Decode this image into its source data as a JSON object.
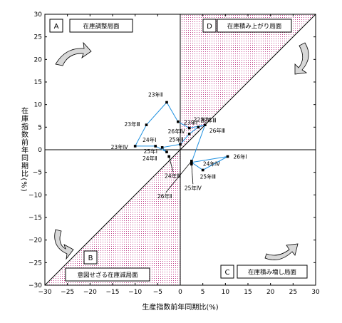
{
  "chart_data": {
    "type": "scatter",
    "xlabel": "生産指数前年同期比(%)",
    "ylabel": "在庫指数前年同期比(%)",
    "xlim": [
      -30,
      30
    ],
    "ylim": [
      -30,
      30
    ],
    "xticks": [
      -30,
      -25,
      -20,
      -15,
      -10,
      -5,
      0,
      5,
      10,
      15,
      20,
      25,
      30
    ],
    "yticks": [
      -30,
      -25,
      -20,
      -15,
      -10,
      -5,
      0,
      5,
      10,
      15,
      20,
      25,
      30
    ],
    "tick_labels_x": [
      "−30",
      "−25",
      "−20",
      "−15",
      "−10",
      "−5",
      "0",
      "5",
      "10",
      "15",
      "20",
      "25",
      "30"
    ],
    "tick_labels_y": [
      "−30",
      "−25",
      "−20",
      "−15",
      "−10",
      "−5",
      "0",
      "5",
      "10",
      "15",
      "20",
      "25",
      "30"
    ],
    "reference_line": "y = x",
    "quadrants": [
      {
        "letter": "A",
        "label": "在庫調整局面"
      },
      {
        "letter": "B",
        "label": "意図せざる在庫減局面"
      },
      {
        "letter": "C",
        "label": "在庫積み増し局面"
      },
      {
        "letter": "D",
        "label": "在庫積み上がり局面"
      }
    ],
    "series": [
      {
        "points": [
          {
            "label": "22年Ⅳ",
            "x": 2.0,
            "y": 4.8
          },
          {
            "label": "23年Ⅰ",
            "x": -0.5,
            "y": 6.2
          },
          {
            "label": "23年Ⅱ",
            "x": -3.0,
            "y": 10.5
          },
          {
            "label": "23年Ⅲ",
            "x": -7.5,
            "y": 5.5
          },
          {
            "label": "23年Ⅳ",
            "x": -10.0,
            "y": 0.8
          },
          {
            "label": "24年Ⅰ",
            "x": -5.5,
            "y": 0.8
          },
          {
            "label": "24年Ⅱ",
            "x": -3.0,
            "y": -0.5
          },
          {
            "label": "24年Ⅲ",
            "x": -2.5,
            "y": -1.5
          },
          {
            "label": "24年Ⅳ",
            "x": 2.5,
            "y": -2.8
          },
          {
            "label": "25年Ⅰ",
            "x": -4.0,
            "y": 0.5
          },
          {
            "label": "25年Ⅱ",
            "x": 0.0,
            "y": 1.2
          },
          {
            "label": "25年Ⅲ",
            "x": 5.0,
            "y": -4.5
          },
          {
            "label": "25年Ⅳ",
            "x": 2.5,
            "y": -3.2
          },
          {
            "label": "26年Ⅰ",
            "x": 10.5,
            "y": -1.5
          },
          {
            "label": "26年Ⅱ",
            "x": 2.5,
            "y": -2.5
          },
          {
            "label": "26年Ⅲ",
            "x": 5.5,
            "y": 5.5
          },
          {
            "label": "26年Ⅳ",
            "x": 2.0,
            "y": 3.5
          },
          {
            "label": "22年Ⅲ",
            "x": 4.0,
            "y": 5.0
          }
        ],
        "path_order": [
          "26年Ⅲ",
          "22年Ⅳ",
          "23年Ⅰ",
          "23年Ⅱ",
          "23年Ⅲ",
          "23年Ⅳ",
          "24年Ⅰ",
          "24年Ⅱ",
          "25年Ⅰ",
          "25年Ⅱ",
          "26年Ⅳ",
          "22年Ⅲ",
          "26年Ⅲ",
          "24年Ⅳ",
          "26年Ⅰ",
          "25年Ⅲ",
          "24年Ⅳ"
        ],
        "color": "#1e90e0"
      }
    ]
  }
}
